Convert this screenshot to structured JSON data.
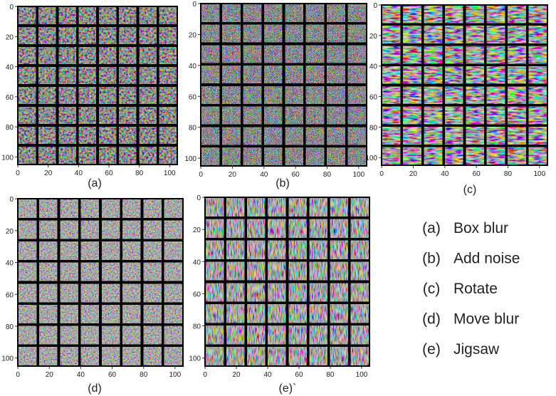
{
  "panels": [
    {
      "label": "(a)",
      "xticks": [
        0,
        20,
        40,
        60,
        80,
        100
      ],
      "yticks": [
        0,
        20,
        40,
        60,
        80,
        100
      ]
    },
    {
      "label": "(b)",
      "xticks": [
        0,
        20,
        40,
        60,
        80,
        100
      ],
      "yticks": [
        0,
        20,
        40,
        60,
        80,
        100
      ]
    },
    {
      "label": "(c)",
      "xticks": [
        0,
        20,
        40,
        60,
        80,
        100
      ],
      "yticks": [
        0,
        20,
        40,
        60,
        80,
        100
      ]
    },
    {
      "label": "(d)",
      "xticks": [
        0,
        20,
        40,
        60,
        80,
        100
      ],
      "yticks": [
        0,
        20,
        40,
        60,
        80,
        100
      ]
    },
    {
      "label": "(e)`",
      "xticks": [
        0,
        20,
        40,
        60,
        80,
        100
      ],
      "yticks": [
        0,
        20,
        40,
        60,
        80,
        100
      ]
    }
  ],
  "legend": [
    {
      "key": "(a)",
      "text": "Box blur"
    },
    {
      "key": "(b)",
      "text": "Add noise"
    },
    {
      "key": "(c)",
      "text": "Rotate"
    },
    {
      "key": "(d)",
      "text": "Move blur"
    },
    {
      "key": "(e)",
      "text": "Jigsaw"
    }
  ]
}
